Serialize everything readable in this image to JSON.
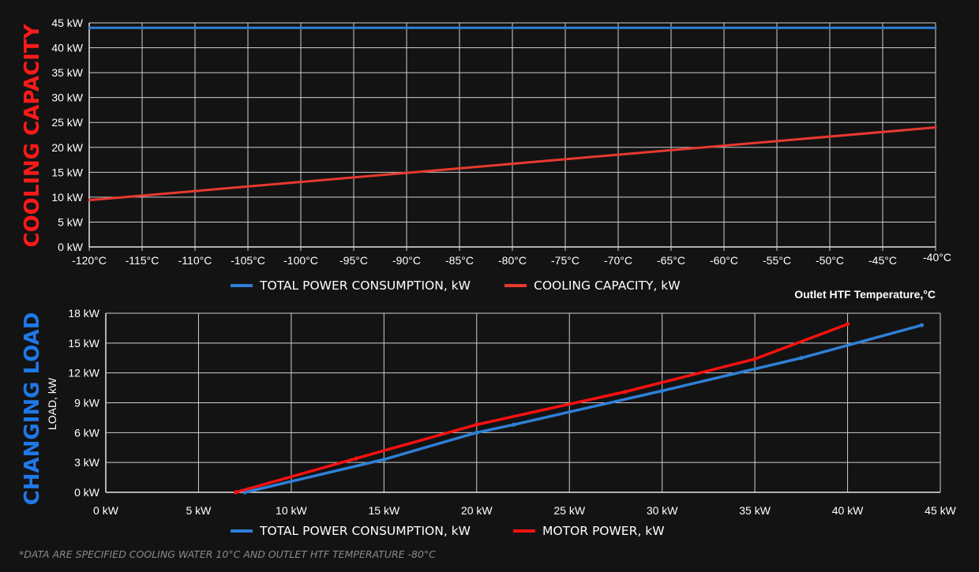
{
  "colors": {
    "background": "#131313",
    "grid": "#d9d9d9",
    "blue": "#2f7fd6",
    "red": "#e8392e",
    "red_bright": "#ff1010",
    "title_red": "#ff1a1a",
    "title_blue": "#1f78e8"
  },
  "footnote": "*DATA ARE SPECIFIED COOLING WATER 10°C AND OUTLET HTF TEMPERATURE -80°C",
  "chart_data": [
    {
      "type": "line",
      "side_title": "COOLING CAPACITY",
      "xlabel": "Outlet HTF Temperature,°C",
      "ylabel": "",
      "xlim": [
        -120,
        -40
      ],
      "ylim": [
        0,
        45
      ],
      "x_ticks": [
        -120,
        -115,
        -110,
        -105,
        -100,
        -95,
        -90,
        -85,
        -80,
        -75,
        -70,
        -65,
        -60,
        -55,
        -50,
        -45,
        -40
      ],
      "x_tick_labels": [
        "-120°C",
        "-115°C",
        "-110°C",
        "-105°C",
        "-100°C",
        "-95°C",
        "-90°C",
        "-85°C",
        "-80°C",
        "-75°C",
        "-70°C",
        "-65°C",
        "-60°C",
        "-55°C",
        "-50°C",
        "-45°C",
        "-40°C"
      ],
      "y_ticks": [
        0,
        5,
        10,
        15,
        20,
        25,
        30,
        35,
        40,
        45
      ],
      "y_tick_labels": [
        "0 kW",
        "5 kW",
        "10 kW",
        "15 kW",
        "20 kW",
        "25 kW",
        "30 kW",
        "35 kW",
        "40 kW",
        "45 kW"
      ],
      "grid": true,
      "legend_position": "bottom-center",
      "series": [
        {
          "name": "TOTAL POWER CONSUMPTION, kW",
          "color": "#2f7fd6",
          "x": [
            -120,
            -40
          ],
          "y": [
            44,
            44
          ]
        },
        {
          "name": "COOLING CAPACITY, kW",
          "color": "#e8392e",
          "x": [
            -120,
            -40
          ],
          "y": [
            9.4,
            24
          ]
        }
      ]
    },
    {
      "type": "line",
      "side_title": "CHANGING LOAD",
      "xlabel": "",
      "ylabel": "LOAD, kW",
      "xlim": [
        0,
        45
      ],
      "ylim": [
        0,
        18
      ],
      "x_ticks": [
        0,
        5,
        10,
        15,
        20,
        25,
        30,
        35,
        40,
        45
      ],
      "x_tick_labels": [
        "0 kW",
        "5 kW",
        "10 kW",
        "15 kW",
        "20 kW",
        "25 kW",
        "30 kW",
        "35 kW",
        "40 kW",
        "45 kW"
      ],
      "y_ticks": [
        0,
        3,
        6,
        9,
        12,
        15,
        18
      ],
      "y_tick_labels": [
        "0 kW",
        "3 kW",
        "6 kW",
        "9 kW",
        "12 kW",
        "15 kW",
        "18 kW"
      ],
      "grid": true,
      "legend_position": "bottom-center",
      "series": [
        {
          "name": "TOTAL POWER CONSUMPTION, kW",
          "color": "#2f7fd6",
          "x": [
            7.5,
            15,
            20,
            22,
            30,
            37.5,
            44
          ],
          "y": [
            0,
            3.3,
            6,
            6.8,
            10.2,
            13.5,
            16.8
          ]
        },
        {
          "name": "MOTOR POWER, kW",
          "color": "#ff1010",
          "x": [
            7,
            13.5,
            20,
            28,
            35,
            40
          ],
          "y": [
            0,
            3.4,
            6.8,
            10.1,
            13.4,
            16.9
          ]
        }
      ]
    }
  ]
}
